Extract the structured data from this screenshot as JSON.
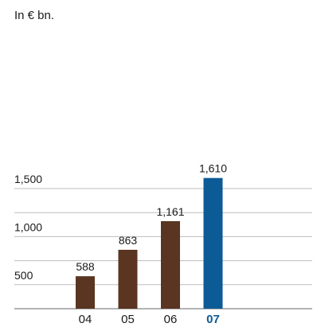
{
  "unit_label": "In € bn.",
  "chart_data": {
    "type": "bar",
    "title": "",
    "xlabel": "",
    "ylabel": "In € bn.",
    "categories": [
      "04",
      "05",
      "06",
      "07"
    ],
    "values": [
      588,
      863,
      1161,
      1610
    ],
    "value_labels": [
      "588",
      "863",
      "1,161",
      "1,610"
    ],
    "y_ticks": [
      500,
      1000,
      1500
    ],
    "y_tick_labels": [
      "500",
      "1,000",
      "1,500"
    ],
    "ylim": [
      250,
      1750
    ],
    "grid": true,
    "colors": {
      "default_bar": "#5a3522",
      "highlight_bar": "#0c5a96",
      "grid": "#bdbdbd",
      "axis": "#9a9a9a",
      "highlight_label": "#0c5a96",
      "text": "#1a1a1a"
    },
    "highlight_category": "07"
  }
}
